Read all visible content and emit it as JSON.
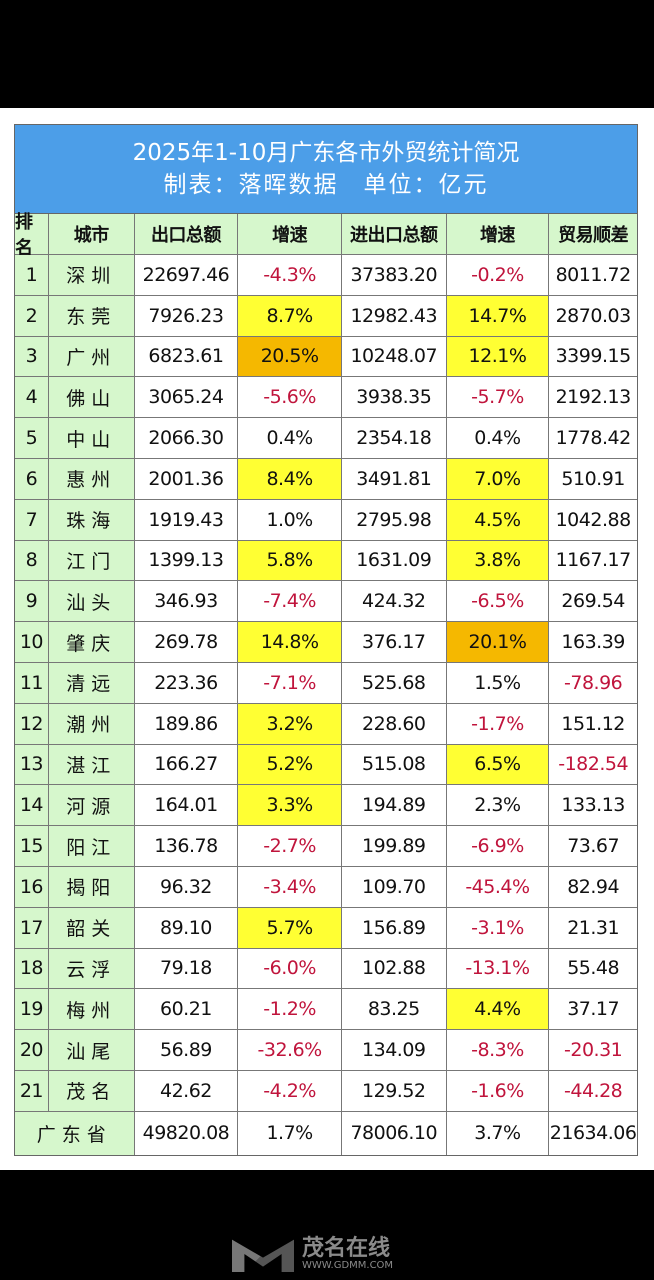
{
  "title": "2025年1-10月广东各市外贸统计简况",
  "subtitle": "制表：落晖数据　单位：亿元",
  "headers": [
    "排名",
    "城市",
    "出口总额",
    "增速",
    "进出口总额",
    "增速",
    "贸易顺差"
  ],
  "rows": [
    [
      "1",
      "深圳",
      "22697.46",
      "-4.3%",
      "37383.20",
      "-0.2%",
      "8011.72"
    ],
    [
      "2",
      "东莞",
      "7926.23",
      "8.7%",
      "12982.43",
      "14.7%",
      "2870.03"
    ],
    [
      "3",
      "广州",
      "6823.61",
      "20.5%",
      "10248.07",
      "12.1%",
      "3399.15"
    ],
    [
      "4",
      "佛山",
      "3065.24",
      "-5.6%",
      "3938.35",
      "-5.7%",
      "2192.13"
    ],
    [
      "5",
      "中山",
      "2066.30",
      "0.4%",
      "2354.18",
      "0.4%",
      "1778.42"
    ],
    [
      "6",
      "惠州",
      "2001.36",
      "8.4%",
      "3491.81",
      "7.0%",
      "510.91"
    ],
    [
      "7",
      "珠海",
      "1919.43",
      "1.0%",
      "2795.98",
      "4.5%",
      "1042.88"
    ],
    [
      "8",
      "江门",
      "1399.13",
      "5.8%",
      "1631.09",
      "3.8%",
      "1167.17"
    ],
    [
      "9",
      "汕头",
      "346.93",
      "-7.4%",
      "424.32",
      "-6.5%",
      "269.54"
    ],
    [
      "10",
      "肇庆",
      "269.78",
      "14.8%",
      "376.17",
      "20.1%",
      "163.39"
    ],
    [
      "11",
      "清远",
      "223.36",
      "-7.1%",
      "525.68",
      "1.5%",
      "-78.96"
    ],
    [
      "12",
      "潮州",
      "189.86",
      "3.2%",
      "228.60",
      "-1.7%",
      "151.12"
    ],
    [
      "13",
      "湛江",
      "166.27",
      "5.2%",
      "515.08",
      "6.5%",
      "-182.54"
    ],
    [
      "14",
      "河源",
      "164.01",
      "3.3%",
      "194.89",
      "2.3%",
      "133.13"
    ],
    [
      "15",
      "阳江",
      "136.78",
      "-2.7%",
      "199.89",
      "-6.9%",
      "73.67"
    ],
    [
      "16",
      "揭阳",
      "96.32",
      "-3.4%",
      "109.70",
      "-45.4%",
      "82.94"
    ],
    [
      "17",
      "韶关",
      "89.10",
      "5.7%",
      "156.89",
      "-3.1%",
      "21.31"
    ],
    [
      "18",
      "云浮",
      "79.18",
      "-6.0%",
      "102.88",
      "-13.1%",
      "55.48"
    ],
    [
      "19",
      "梅州",
      "60.21",
      "-1.2%",
      "83.25",
      "4.4%",
      "37.17"
    ],
    [
      "20",
      "汕尾",
      "56.89",
      "-32.6%",
      "134.09",
      "-8.3%",
      "-20.31"
    ],
    [
      "21",
      "茂名",
      "42.62",
      "-4.2%",
      "129.52",
      "-1.6%",
      "-44.28"
    ]
  ],
  "highlights": {
    "export_growth": {
      "东莞": "y",
      "广州": "o",
      "惠州": "y",
      "江门": "y",
      "肇庆": "y",
      "潮州": "y",
      "湛江": "y",
      "河源": "y",
      "韶关": "y"
    },
    "total_growth": {
      "东莞": "y",
      "广州": "y",
      "惠州": "y",
      "珠海": "y",
      "江门": "y",
      "肇庆": "o",
      "湛江": "y",
      "梅州": "y"
    }
  },
  "colors": {
    "yellow": "#ffff33",
    "orange": "#f5b800",
    "negative": "#c0143c",
    "title_bg": "#4c9ee8"
  },
  "total": {
    "label": "广东省",
    "export": "49820.08",
    "export_growth": "1.7%",
    "trade": "78006.10",
    "trade_growth": "3.7%",
    "surplus": "21634.06"
  },
  "watermark": {
    "name": "茂名在线",
    "url": "WWW.GDMM.COM"
  }
}
